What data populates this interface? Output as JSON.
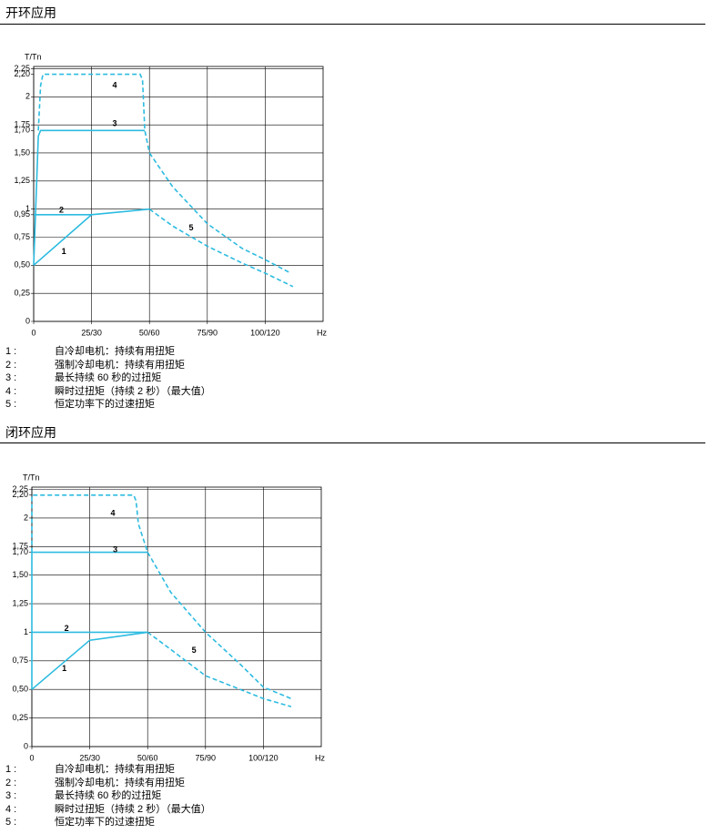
{
  "chart_data": [
    {
      "type": "line",
      "title": "开环应用",
      "y_label": "T/Tn",
      "x_label": "Hz",
      "xlim": [
        0,
        125
      ],
      "ylim": [
        0,
        2.27
      ],
      "xticks": [
        0,
        {
          "value": 25,
          "label": "25/30"
        },
        {
          "value": 50,
          "label": "50/60"
        },
        {
          "value": 75,
          "label": "75/90"
        },
        {
          "value": 100,
          "label": "100/120"
        }
      ],
      "yticks": [
        0,
        {
          "value": 0.25,
          "label": "0,25"
        },
        {
          "value": 0.5,
          "label": "0,50"
        },
        {
          "value": 0.75,
          "label": "0,75"
        },
        {
          "value": 0.95,
          "label": "0,95"
        },
        1,
        {
          "value": 1.25,
          "label": "1,25"
        },
        {
          "value": 1.5,
          "label": "1,50"
        },
        {
          "value": 1.7,
          "label": "1,70"
        },
        {
          "value": 1.75,
          "label": "1,75"
        },
        2,
        {
          "value": 2.2,
          "label": "2,20"
        },
        {
          "value": 2.25,
          "label": "2,25"
        }
      ],
      "grid": true,
      "color": "#2cbbe0",
      "label_color": "#4b8fc4",
      "series": [
        {
          "name": "1",
          "style": "solid",
          "x": [
            0,
            25,
            50
          ],
          "values": [
            0.5,
            0.95,
            1.0
          ]
        },
        {
          "name": "2",
          "style": "solid",
          "x": [
            0,
            25
          ],
          "values": [
            0.95,
            0.95
          ]
        },
        {
          "name": "3",
          "style": "solid",
          "x": [
            0,
            2,
            3,
            48
          ],
          "values": [
            0.5,
            1.65,
            1.7,
            1.7
          ]
        },
        {
          "name": "4",
          "style": "dashed",
          "x": [
            2,
            3,
            4,
            46,
            47,
            48,
            50
          ],
          "values": [
            1.7,
            2.1,
            2.2,
            2.2,
            2.15,
            1.7,
            1.5
          ]
        },
        {
          "name": "5",
          "style": "dashed",
          "x": [
            50,
            60,
            75,
            90,
            100,
            111,
            null,
            50,
            60,
            75,
            90,
            100,
            112
          ],
          "values": [
            1.5,
            1.2,
            0.87,
            0.65,
            0.55,
            0.43,
            null,
            1.0,
            0.85,
            0.67,
            0.52,
            0.43,
            0.31
          ]
        }
      ],
      "notes": [
        {
          "num": "1 :",
          "text": "自冷却电机：持续有用扭矩"
        },
        {
          "num": "2 :",
          "text": "强制冷却电机：持续有用扭矩"
        },
        {
          "num": "3 :",
          "text": "最长持续 60 秒的过扭矩"
        },
        {
          "num": "4 :",
          "text": "瞬时过扭矩（持续 2 秒）（最大值）"
        },
        {
          "num": "5 :",
          "text": "恒定功率下的过速扭矩"
        }
      ]
    },
    {
      "type": "line",
      "title": "闭环应用",
      "y_label": "T/Tn",
      "x_label": "Hz",
      "xlim": [
        0,
        125
      ],
      "ylim": [
        0,
        2.27
      ],
      "xticks": [
        0,
        {
          "value": 25,
          "label": "25/30"
        },
        {
          "value": 50,
          "label": "50/60"
        },
        {
          "value": 75,
          "label": "75/90"
        },
        {
          "value": 100,
          "label": "100/120"
        }
      ],
      "yticks": [
        0,
        {
          "value": 0.25,
          "label": "0,25"
        },
        {
          "value": 0.5,
          "label": "0,50"
        },
        {
          "value": 0.75,
          "label": "0,75"
        },
        1,
        {
          "value": 1.25,
          "label": "1,25"
        },
        {
          "value": 1.5,
          "label": "1,50"
        },
        {
          "value": 1.7,
          "label": "1,70"
        },
        {
          "value": 1.75,
          "label": "1,75"
        },
        2,
        {
          "value": 2.2,
          "label": "2,20"
        },
        {
          "value": 2.25,
          "label": "2,25"
        }
      ],
      "grid": true,
      "color": "#2cbbe0",
      "label_color": "#4b8fc4",
      "series": [
        {
          "name": "1",
          "style": "solid",
          "x": [
            0,
            25,
            50
          ],
          "values": [
            0.5,
            0.93,
            1.0
          ]
        },
        {
          "name": "2",
          "style": "solid",
          "x": [
            0,
            50
          ],
          "values": [
            1,
            1
          ]
        },
        {
          "name": "3",
          "style": "solid",
          "x": [
            0,
            0,
            50
          ],
          "values": [
            0.5,
            1.7,
            1.7
          ]
        },
        {
          "name": "4",
          "style": "dashed",
          "x": [
            0,
            0,
            44,
            45,
            46,
            50
          ],
          "values": [
            1.7,
            2.2,
            2.2,
            2.15,
            1.95,
            1.7
          ]
        },
        {
          "name": "5",
          "style": "dashed",
          "x": [
            50,
            60,
            75,
            90,
            100,
            112,
            null,
            50,
            60,
            75,
            90,
            100,
            112
          ],
          "values": [
            1.7,
            1.35,
            1.0,
            0.72,
            0.52,
            0.42,
            null,
            1.0,
            0.85,
            0.62,
            0.5,
            0.42,
            0.35
          ]
        }
      ],
      "notes": [
        {
          "num": "1 :",
          "text": "自冷却电机：持续有用扭矩"
        },
        {
          "num": "2 :",
          "text": "强制冷却电机：持续有用扭矩"
        },
        {
          "num": "3 :",
          "text": "最长持续 60 秒的过扭矩"
        },
        {
          "num": "4 :",
          "text": "瞬时过扭矩（持续 2 秒）（最大值）"
        },
        {
          "num": "5 :",
          "text": "恒定功率下的过速扭矩"
        }
      ]
    }
  ]
}
